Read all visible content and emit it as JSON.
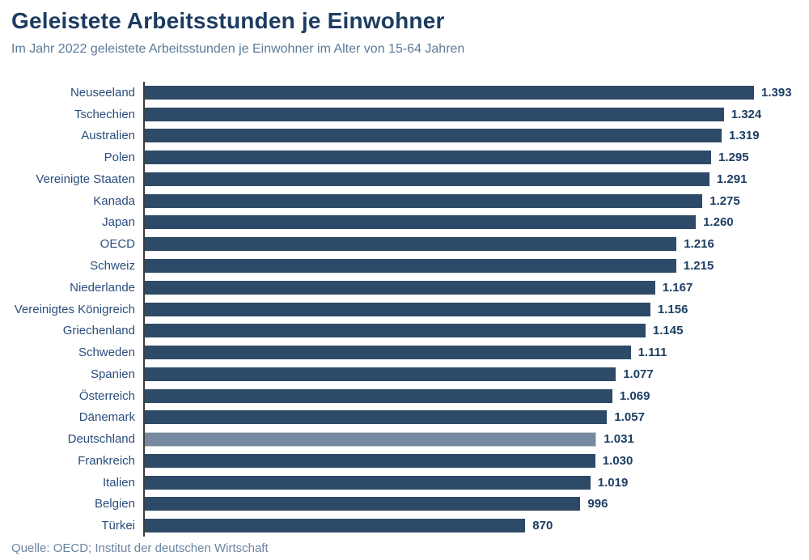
{
  "header": {
    "title": "Geleistete Arbeitsstunden je Einwohner",
    "subtitle": "Im Jahr 2022 geleistete Arbeitsstunden je Einwohner im Alter von 15-64 Jahren"
  },
  "footer": {
    "source": "Quelle: OECD; Institut der deutschen Wirtschaft"
  },
  "colors": {
    "bar": "#2d4a68",
    "highlight_bar": "#76899f",
    "title_text": "#1d3c61",
    "label_text": "#2a4d7d",
    "subtitle_text": "#5b7a99",
    "axis_line": "#3c3c3c"
  },
  "chart_data": {
    "type": "bar",
    "orientation": "horizontal",
    "title": "Geleistete Arbeitsstunden je Einwohner",
    "subtitle": "Im Jahr 2022 geleistete Arbeitsstunden je Einwohner im Alter von 15-64 Jahren",
    "source": "Quelle: OECD; Institut der deutschen Wirtschaft",
    "xlabel": "",
    "ylabel": "",
    "xlim": [
      0,
      1393
    ],
    "grid": false,
    "legend": false,
    "highlight_category": "Deutschland",
    "highlight_index": 16,
    "categories": [
      "Neuseeland",
      "Tschechien",
      "Australien",
      "Polen",
      "Vereinigte Staaten",
      "Kanada",
      "Japan",
      "OECD",
      "Schweiz",
      "Niederlande",
      "Vereinigtes Königreich",
      "Griechenland",
      "Schweden",
      "Spanien",
      "Österreich",
      "Dänemark",
      "Deutschland",
      "Frankreich",
      "Italien",
      "Belgien",
      "Türkei"
    ],
    "values": [
      1393,
      1324,
      1319,
      1295,
      1291,
      1275,
      1260,
      1216,
      1215,
      1167,
      1156,
      1145,
      1111,
      1077,
      1069,
      1057,
      1031,
      1030,
      1019,
      996,
      870
    ],
    "value_labels": [
      "1.393",
      "1.324",
      "1.319",
      "1.295",
      "1.291",
      "1.275",
      "1.260",
      "1.216",
      "1.215",
      "1.167",
      "1.156",
      "1.145",
      "1.111",
      "1.077",
      "1.069",
      "1.057",
      "1.031",
      "1.030",
      "1.019",
      "996",
      "870"
    ]
  }
}
